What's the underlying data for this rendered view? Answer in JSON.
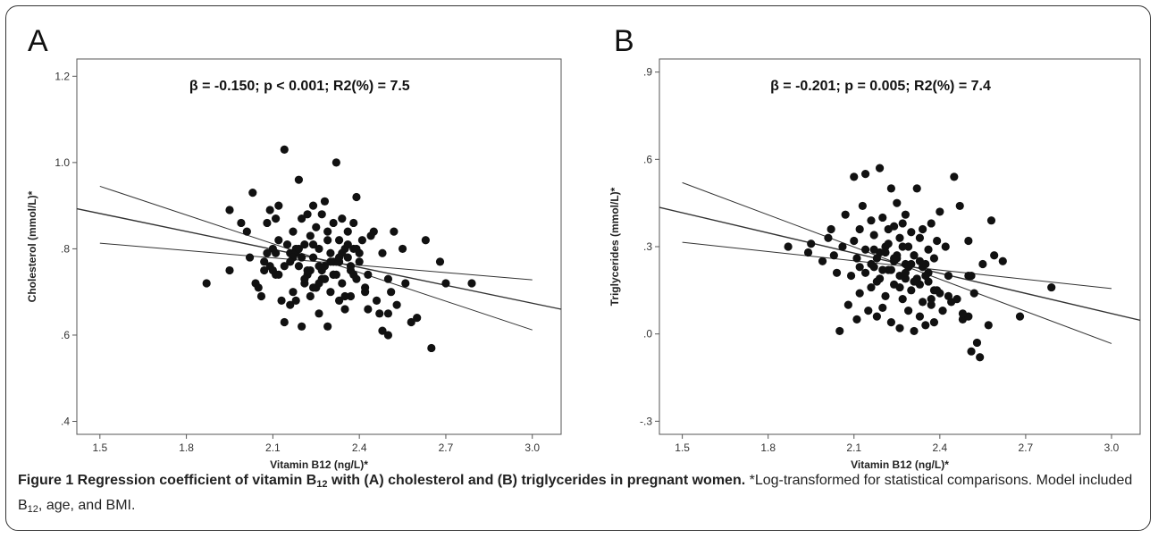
{
  "panels": [
    {
      "letter": "A",
      "annotation": "β = -0.150; p < 0.001; R2(%) = 7.5",
      "chart_data": {
        "type": "scatter",
        "xlabel": "Vitamin B12 (ng/L)*",
        "ylabel": "Cholesterol (mmol/L)*",
        "xlim": [
          1.42,
          3.1
        ],
        "ylim": [
          0.37,
          1.24
        ],
        "xticks": [
          "1.5",
          "1.8",
          "2.1",
          "2.4",
          "2.7",
          "3.0"
        ],
        "yticks": [
          "1.2",
          "1.0",
          ".8",
          ".6",
          ".4"
        ],
        "ytick_values": [
          1.2,
          1.0,
          0.8,
          0.6,
          0.4
        ],
        "xtick_values": [
          1.5,
          1.8,
          2.1,
          2.4,
          2.7,
          3.0
        ],
        "regression_line": {
          "x": [
            1.42,
            3.1
          ],
          "y": [
            0.893,
            0.66
          ]
        },
        "ci_upper": {
          "x": [
            1.5,
            3.0
          ],
          "y": [
            0.945,
            0.612
          ]
        },
        "ci_lower": {
          "x": [
            1.5,
            3.0
          ],
          "y": [
            0.813,
            0.728
          ]
        },
        "x": [
          1.87,
          1.95,
          1.95,
          1.99,
          2.01,
          2.02,
          2.03,
          2.04,
          2.06,
          2.07,
          2.08,
          2.08,
          2.09,
          2.09,
          2.1,
          2.1,
          2.11,
          2.11,
          2.12,
          2.12,
          2.13,
          2.14,
          2.14,
          2.15,
          2.16,
          2.16,
          2.17,
          2.17,
          2.18,
          2.18,
          2.19,
          2.19,
          2.2,
          2.2,
          2.21,
          2.21,
          2.22,
          2.22,
          2.23,
          2.23,
          2.24,
          2.24,
          2.25,
          2.25,
          2.26,
          2.26,
          2.27,
          2.27,
          2.28,
          2.28,
          2.29,
          2.29,
          2.3,
          2.3,
          2.31,
          2.31,
          2.32,
          2.32,
          2.33,
          2.33,
          2.34,
          2.34,
          2.35,
          2.35,
          2.36,
          2.36,
          2.37,
          2.37,
          2.38,
          2.38,
          2.39,
          2.39,
          2.4,
          2.41,
          2.42,
          2.43,
          2.45,
          2.46,
          2.47,
          2.48,
          2.5,
          2.5,
          2.51,
          2.52,
          2.53,
          2.55,
          2.56,
          2.58,
          2.6,
          2.63,
          2.65,
          2.68,
          2.7,
          2.79,
          2.2,
          2.26,
          2.31,
          2.34,
          2.28,
          2.24,
          2.36,
          2.33,
          2.21,
          2.29,
          2.38,
          2.18,
          2.23,
          2.32,
          2.27,
          2.35,
          2.3,
          2.25,
          2.4,
          2.44,
          2.14,
          2.17,
          2.12,
          2.19,
          2.22,
          2.26,
          2.33,
          2.37,
          2.28,
          2.24,
          2.31,
          2.16,
          2.43,
          2.48,
          2.5,
          2.05,
          2.07,
          2.11,
          2.39,
          2.42
        ],
        "y": [
          0.72,
          0.75,
          0.89,
          0.86,
          0.84,
          0.78,
          0.93,
          0.72,
          0.69,
          0.75,
          0.86,
          0.79,
          0.76,
          0.89,
          0.8,
          0.75,
          0.87,
          0.74,
          0.9,
          0.82,
          0.68,
          1.03,
          0.63,
          0.81,
          0.79,
          0.67,
          0.84,
          0.7,
          0.8,
          0.68,
          0.96,
          0.76,
          0.87,
          0.62,
          0.81,
          0.72,
          0.88,
          0.74,
          0.83,
          0.69,
          0.9,
          0.78,
          0.85,
          0.71,
          0.8,
          0.65,
          0.88,
          0.75,
          0.91,
          0.73,
          0.84,
          0.62,
          0.79,
          0.7,
          0.86,
          0.77,
          1.0,
          0.74,
          0.82,
          0.68,
          0.87,
          0.72,
          0.8,
          0.66,
          0.84,
          0.78,
          0.75,
          0.69,
          0.86,
          0.8,
          0.92,
          0.73,
          0.77,
          0.82,
          0.7,
          0.74,
          0.84,
          0.68,
          0.65,
          0.79,
          0.73,
          0.6,
          0.7,
          0.84,
          0.67,
          0.8,
          0.72,
          0.63,
          0.64,
          0.82,
          0.57,
          0.77,
          0.72,
          0.72,
          0.78,
          0.76,
          0.74,
          0.79,
          0.76,
          0.71,
          0.81,
          0.77,
          0.73,
          0.82,
          0.74,
          0.79,
          0.75,
          0.77,
          0.73,
          0.69,
          0.77,
          0.71,
          0.79,
          0.83,
          0.76,
          0.78,
          0.74,
          0.8,
          0.75,
          0.72,
          0.78,
          0.76,
          0.73,
          0.81,
          0.74,
          0.77,
          0.66,
          0.61,
          0.65,
          0.71,
          0.77,
          0.79,
          0.8,
          0.71
        ]
      }
    },
    {
      "letter": "B",
      "annotation": "β = -0.201; p = 0.005; R2(%) = 7.4",
      "chart_data": {
        "type": "scatter",
        "xlabel": "Vitamin B12 (ng/L)*",
        "ylabel": "Triglycerides (mmol/L)*",
        "xlim": [
          1.42,
          3.1
        ],
        "ylim": [
          -0.345,
          0.945
        ],
        "xticks": [
          "1.5",
          "1.8",
          "2.1",
          "2.4",
          "2.7",
          "3.0"
        ],
        "yticks": [
          ".9",
          ".6",
          ".3",
          ".0",
          "-.3"
        ],
        "ytick_values": [
          0.9,
          0.6,
          0.3,
          0.0,
          -0.3
        ],
        "xtick_values": [
          1.5,
          1.8,
          2.1,
          2.4,
          2.7,
          3.0
        ],
        "regression_line": {
          "x": [
            1.42,
            3.1
          ],
          "y": [
            0.435,
            0.047
          ]
        },
        "ci_upper": {
          "x": [
            1.5,
            3.0
          ],
          "y": [
            0.52,
            -0.033
          ]
        },
        "ci_lower": {
          "x": [
            1.5,
            3.0
          ],
          "y": [
            0.315,
            0.156
          ]
        },
        "x": [
          1.87,
          1.94,
          1.95,
          1.99,
          2.01,
          2.02,
          2.03,
          2.04,
          2.05,
          2.06,
          2.07,
          2.08,
          2.09,
          2.1,
          2.1,
          2.11,
          2.11,
          2.12,
          2.12,
          2.13,
          2.14,
          2.14,
          2.15,
          2.16,
          2.16,
          2.17,
          2.17,
          2.18,
          2.18,
          2.19,
          2.19,
          2.2,
          2.2,
          2.21,
          2.21,
          2.22,
          2.22,
          2.23,
          2.23,
          2.24,
          2.24,
          2.25,
          2.25,
          2.26,
          2.26,
          2.27,
          2.27,
          2.28,
          2.28,
          2.29,
          2.29,
          2.3,
          2.3,
          2.31,
          2.31,
          2.32,
          2.32,
          2.33,
          2.33,
          2.34,
          2.34,
          2.35,
          2.35,
          2.36,
          2.36,
          2.37,
          2.37,
          2.38,
          2.38,
          2.39,
          2.39,
          2.4,
          2.41,
          2.42,
          2.43,
          2.45,
          2.46,
          2.47,
          2.48,
          2.5,
          2.5,
          2.51,
          2.51,
          2.52,
          2.53,
          2.54,
          2.55,
          2.57,
          2.58,
          2.59,
          2.62,
          2.68,
          2.79,
          2.2,
          2.26,
          2.31,
          2.34,
          2.28,
          2.24,
          2.36,
          2.33,
          2.21,
          2.29,
          2.38,
          2.18,
          2.23,
          2.32,
          2.27,
          2.35,
          2.3,
          2.25,
          2.4,
          2.44,
          2.14,
          2.17,
          2.12,
          2.19,
          2.22,
          2.26,
          2.33,
          2.37,
          2.28,
          2.24,
          2.31,
          2.16,
          2.43,
          2.48,
          2.5
        ],
        "y": [
          0.3,
          0.28,
          0.31,
          0.25,
          0.33,
          0.36,
          0.27,
          0.21,
          0.01,
          0.3,
          0.41,
          0.1,
          0.2,
          0.54,
          0.32,
          0.26,
          0.05,
          0.36,
          0.14,
          0.44,
          0.29,
          0.55,
          0.08,
          0.39,
          0.16,
          0.34,
          0.23,
          0.18,
          0.06,
          0.57,
          0.28,
          0.4,
          0.09,
          0.3,
          0.13,
          0.36,
          0.22,
          0.5,
          0.04,
          0.37,
          0.17,
          0.45,
          0.26,
          0.02,
          0.33,
          0.12,
          0.38,
          0.24,
          0.41,
          0.08,
          0.3,
          0.35,
          0.15,
          0.01,
          0.27,
          0.5,
          0.19,
          0.06,
          0.33,
          0.11,
          0.36,
          0.24,
          0.03,
          0.29,
          0.18,
          0.38,
          0.1,
          0.26,
          0.04,
          0.32,
          0.15,
          0.42,
          0.08,
          0.3,
          0.2,
          0.54,
          0.12,
          0.44,
          0.05,
          0.32,
          0.06,
          0.2,
          -0.06,
          0.14,
          -0.03,
          -0.08,
          0.24,
          0.03,
          0.39,
          0.27,
          0.25,
          0.06,
          0.16,
          0.22,
          0.2,
          0.27,
          0.23,
          0.19,
          0.25,
          0.21,
          0.17,
          0.28,
          0.23,
          0.15,
          0.26,
          0.22,
          0.18,
          0.3,
          0.2,
          0.24,
          0.27,
          0.14,
          0.11,
          0.21,
          0.29,
          0.23,
          0.19,
          0.31,
          0.16,
          0.25,
          0.12,
          0.21,
          0.26,
          0.18,
          0.24,
          0.13,
          0.07,
          0.2
        ]
      }
    }
  ],
  "caption": {
    "label": "Figure 1",
    "title_pre": " Regression coefficient of vitamin B",
    "title_sub": "12",
    "title_post": " with (A) cholesterol and (B) triglycerides in pregnant women.",
    "note_pre": " *Log-transformed for statistical comparisons. Model included B",
    "note_sub": "12",
    "note_post": ", age, and BMI."
  },
  "colors": {
    "points": "#111111",
    "lines": "#333333",
    "axes": "#555555"
  }
}
